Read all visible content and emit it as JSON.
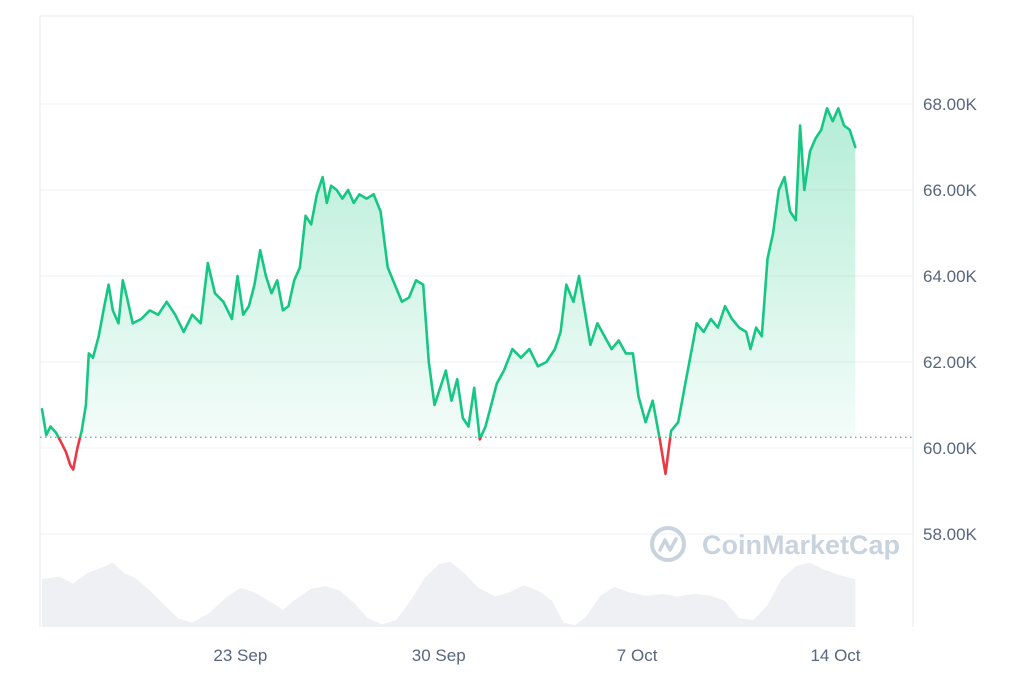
{
  "watermark": "CoinMarketCap",
  "chart_data": {
    "type": "line",
    "baseline": 60.25,
    "ylim": [
      56,
      70
    ],
    "y_ticks": [
      {
        "value": 58,
        "label": "58.00K"
      },
      {
        "value": 60,
        "label": "60.00K"
      },
      {
        "value": 62,
        "label": "62.00K"
      },
      {
        "value": 64,
        "label": "64.00K"
      },
      {
        "value": 66,
        "label": "66.00K"
      },
      {
        "value": 68,
        "label": "68.00K"
      }
    ],
    "x_ticks": [
      {
        "day": 7,
        "label": "23 Sep"
      },
      {
        "day": 14,
        "label": "30 Sep"
      },
      {
        "day": 21,
        "label": "7 Oct"
      },
      {
        "day": 28,
        "label": "14 Oct"
      }
    ],
    "xlim": [
      0,
      30.7
    ],
    "price": [
      [
        0.0,
        60.9
      ],
      [
        0.15,
        60.3
      ],
      [
        0.3,
        60.5
      ],
      [
        0.5,
        60.35
      ],
      [
        0.7,
        60.1
      ],
      [
        0.85,
        59.9
      ],
      [
        1.0,
        59.6
      ],
      [
        1.1,
        59.5
      ],
      [
        1.25,
        60.0
      ],
      [
        1.4,
        60.4
      ],
      [
        1.55,
        61.0
      ],
      [
        1.65,
        62.2
      ],
      [
        1.8,
        62.1
      ],
      [
        2.0,
        62.6
      ],
      [
        2.2,
        63.3
      ],
      [
        2.35,
        63.8
      ],
      [
        2.5,
        63.2
      ],
      [
        2.7,
        62.9
      ],
      [
        2.85,
        63.9
      ],
      [
        3.0,
        63.5
      ],
      [
        3.2,
        62.9
      ],
      [
        3.5,
        63.0
      ],
      [
        3.8,
        63.2
      ],
      [
        4.1,
        63.1
      ],
      [
        4.4,
        63.4
      ],
      [
        4.7,
        63.1
      ],
      [
        5.0,
        62.7
      ],
      [
        5.3,
        63.1
      ],
      [
        5.6,
        62.9
      ],
      [
        5.85,
        64.3
      ],
      [
        6.1,
        63.6
      ],
      [
        6.4,
        63.4
      ],
      [
        6.7,
        63.0
      ],
      [
        6.9,
        64.0
      ],
      [
        7.1,
        63.1
      ],
      [
        7.3,
        63.3
      ],
      [
        7.5,
        63.8
      ],
      [
        7.7,
        64.6
      ],
      [
        7.9,
        64.0
      ],
      [
        8.1,
        63.6
      ],
      [
        8.3,
        63.9
      ],
      [
        8.5,
        63.2
      ],
      [
        8.7,
        63.3
      ],
      [
        8.9,
        63.9
      ],
      [
        9.1,
        64.2
      ],
      [
        9.3,
        65.4
      ],
      [
        9.5,
        65.2
      ],
      [
        9.7,
        65.9
      ],
      [
        9.9,
        66.3
      ],
      [
        10.05,
        65.7
      ],
      [
        10.2,
        66.1
      ],
      [
        10.4,
        66.0
      ],
      [
        10.6,
        65.8
      ],
      [
        10.8,
        66.0
      ],
      [
        11.0,
        65.7
      ],
      [
        11.2,
        65.9
      ],
      [
        11.45,
        65.8
      ],
      [
        11.7,
        65.9
      ],
      [
        11.95,
        65.5
      ],
      [
        12.2,
        64.2
      ],
      [
        12.45,
        63.8
      ],
      [
        12.7,
        63.4
      ],
      [
        12.95,
        63.5
      ],
      [
        13.2,
        63.9
      ],
      [
        13.45,
        63.8
      ],
      [
        13.65,
        62.0
      ],
      [
        13.85,
        61.0
      ],
      [
        14.05,
        61.4
      ],
      [
        14.25,
        61.8
      ],
      [
        14.45,
        61.1
      ],
      [
        14.65,
        61.6
      ],
      [
        14.85,
        60.7
      ],
      [
        15.05,
        60.5
      ],
      [
        15.25,
        61.4
      ],
      [
        15.45,
        60.2
      ],
      [
        15.65,
        60.5
      ],
      [
        15.85,
        61.0
      ],
      [
        16.05,
        61.5
      ],
      [
        16.3,
        61.8
      ],
      [
        16.6,
        62.3
      ],
      [
        16.9,
        62.1
      ],
      [
        17.2,
        62.3
      ],
      [
        17.5,
        61.9
      ],
      [
        17.8,
        62.0
      ],
      [
        18.1,
        62.3
      ],
      [
        18.3,
        62.7
      ],
      [
        18.5,
        63.8
      ],
      [
        18.75,
        63.4
      ],
      [
        18.95,
        64.0
      ],
      [
        19.15,
        63.2
      ],
      [
        19.35,
        62.4
      ],
      [
        19.6,
        62.9
      ],
      [
        19.85,
        62.6
      ],
      [
        20.1,
        62.3
      ],
      [
        20.35,
        62.5
      ],
      [
        20.6,
        62.2
      ],
      [
        20.85,
        62.2
      ],
      [
        21.05,
        61.2
      ],
      [
        21.3,
        60.6
      ],
      [
        21.55,
        61.1
      ],
      [
        21.8,
        60.2
      ],
      [
        22.0,
        59.4
      ],
      [
        22.2,
        60.4
      ],
      [
        22.45,
        60.6
      ],
      [
        22.7,
        61.5
      ],
      [
        22.9,
        62.2
      ],
      [
        23.1,
        62.9
      ],
      [
        23.35,
        62.7
      ],
      [
        23.6,
        63.0
      ],
      [
        23.85,
        62.8
      ],
      [
        24.1,
        63.3
      ],
      [
        24.35,
        63.0
      ],
      [
        24.6,
        62.8
      ],
      [
        24.85,
        62.7
      ],
      [
        25.0,
        62.3
      ],
      [
        25.2,
        62.8
      ],
      [
        25.4,
        62.6
      ],
      [
        25.6,
        64.4
      ],
      [
        25.8,
        65.0
      ],
      [
        26.0,
        66.0
      ],
      [
        26.2,
        66.3
      ],
      [
        26.4,
        65.5
      ],
      [
        26.6,
        65.3
      ],
      [
        26.75,
        67.5
      ],
      [
        26.9,
        66.0
      ],
      [
        27.1,
        66.9
      ],
      [
        27.3,
        67.2
      ],
      [
        27.5,
        67.4
      ],
      [
        27.7,
        67.9
      ],
      [
        27.9,
        67.6
      ],
      [
        28.1,
        67.9
      ],
      [
        28.3,
        67.5
      ],
      [
        28.5,
        67.4
      ],
      [
        28.7,
        67.0
      ]
    ],
    "volume": [
      [
        0.0,
        0.55
      ],
      [
        0.6,
        0.58
      ],
      [
        1.1,
        0.5
      ],
      [
        1.6,
        0.62
      ],
      [
        2.1,
        0.68
      ],
      [
        2.5,
        0.74
      ],
      [
        2.9,
        0.62
      ],
      [
        3.3,
        0.56
      ],
      [
        3.8,
        0.42
      ],
      [
        4.3,
        0.26
      ],
      [
        4.8,
        0.1
      ],
      [
        5.3,
        0.05
      ],
      [
        5.9,
        0.16
      ],
      [
        6.5,
        0.34
      ],
      [
        7.0,
        0.45
      ],
      [
        7.5,
        0.4
      ],
      [
        8.0,
        0.3
      ],
      [
        8.5,
        0.2
      ],
      [
        9.0,
        0.33
      ],
      [
        9.5,
        0.44
      ],
      [
        10.0,
        0.47
      ],
      [
        10.5,
        0.42
      ],
      [
        11.0,
        0.28
      ],
      [
        11.5,
        0.1
      ],
      [
        12.0,
        0.03
      ],
      [
        12.5,
        0.08
      ],
      [
        13.0,
        0.3
      ],
      [
        13.5,
        0.56
      ],
      [
        14.0,
        0.72
      ],
      [
        14.4,
        0.75
      ],
      [
        14.9,
        0.62
      ],
      [
        15.4,
        0.45
      ],
      [
        16.0,
        0.35
      ],
      [
        16.5,
        0.4
      ],
      [
        17.0,
        0.48
      ],
      [
        17.5,
        0.42
      ],
      [
        18.0,
        0.3
      ],
      [
        18.4,
        0.05
      ],
      [
        18.8,
        0.02
      ],
      [
        19.2,
        0.12
      ],
      [
        19.7,
        0.36
      ],
      [
        20.2,
        0.46
      ],
      [
        20.7,
        0.4
      ],
      [
        21.3,
        0.36
      ],
      [
        21.9,
        0.38
      ],
      [
        22.4,
        0.35
      ],
      [
        23.0,
        0.38
      ],
      [
        23.6,
        0.36
      ],
      [
        24.1,
        0.3
      ],
      [
        24.6,
        0.1
      ],
      [
        25.1,
        0.08
      ],
      [
        25.6,
        0.25
      ],
      [
        26.1,
        0.55
      ],
      [
        26.6,
        0.7
      ],
      [
        27.1,
        0.74
      ],
      [
        27.6,
        0.66
      ],
      [
        28.1,
        0.6
      ],
      [
        28.7,
        0.55
      ]
    ],
    "line_color": "#16c784",
    "down_color": "#ea3943",
    "fill_color": "#16c784",
    "volume_color": "#eef0f3"
  }
}
